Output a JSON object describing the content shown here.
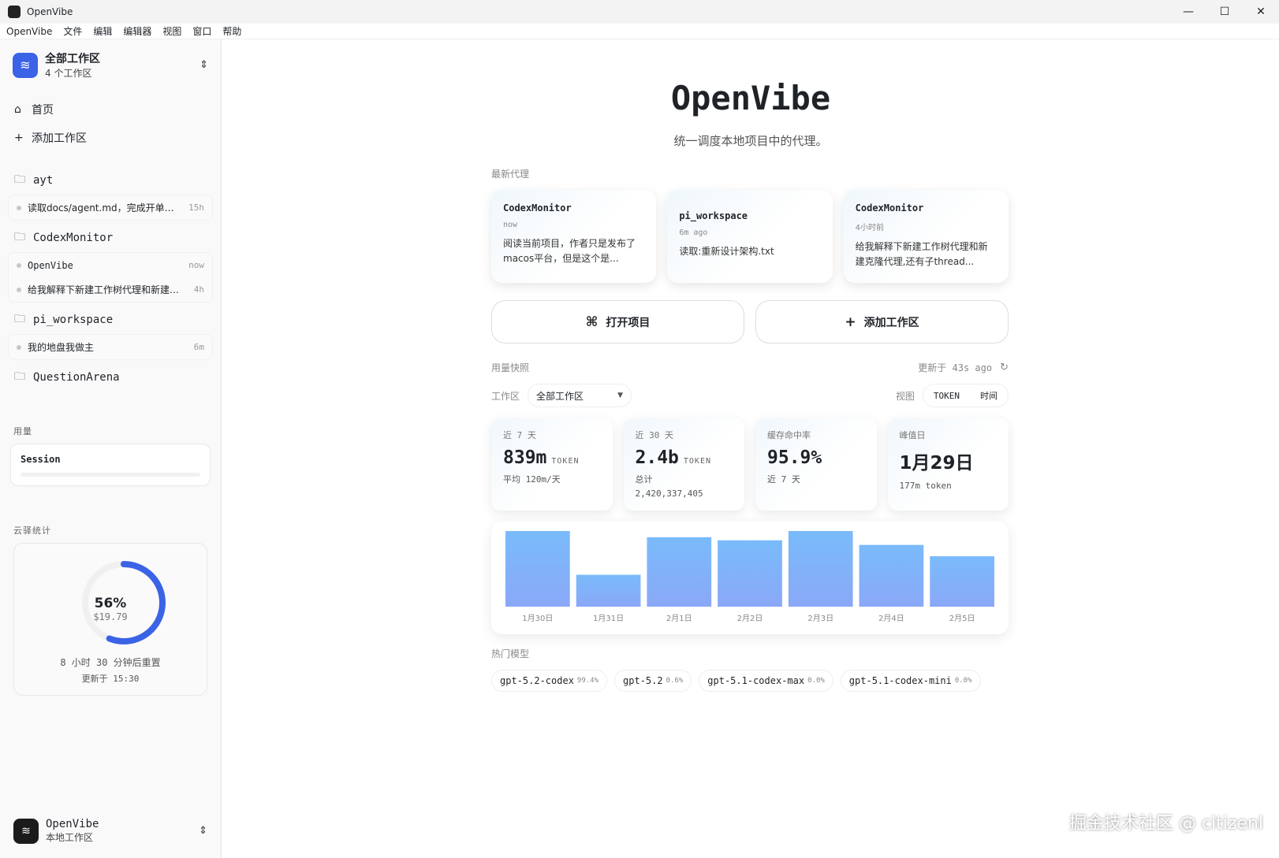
{
  "window": {
    "title": "OpenVibe",
    "minimize": "—",
    "maximize": "☐",
    "close": "✕"
  },
  "menu": [
    "OpenVibe",
    "文件",
    "编辑",
    "编辑器",
    "视图",
    "窗口",
    "帮助"
  ],
  "sidebar": {
    "workspace": {
      "title": "全部工作区",
      "subtitle": "4 个工作区"
    },
    "nav": [
      {
        "label": "首页",
        "icon": "home-icon"
      },
      {
        "label": "添加工作区",
        "icon": "plus-icon"
      }
    ],
    "folders": [
      {
        "name": "ayt",
        "items": [
          {
            "label": "读取docs/agent.md，完成开单界面设计",
            "time": "15h"
          }
        ]
      },
      {
        "name": "CodexMonitor",
        "items": [
          {
            "label": "OpenVibe",
            "time": "now"
          },
          {
            "label": "给我解释下新建工作树代理和新建克隆代理",
            "time": "4h"
          }
        ]
      },
      {
        "name": "pi_workspace",
        "items": [
          {
            "label": "我的地盘我做主",
            "time": "6m"
          }
        ]
      },
      {
        "name": "QuestionArena",
        "items": []
      }
    ],
    "usage_label": "用量",
    "session_label": "Session",
    "cloud_label": "云驿统计",
    "cloud": {
      "percent": "56%",
      "percent_value": 56,
      "amount": "$19.79",
      "reset": "8 小时 30 分钟后重置",
      "updated": "更新于 15:30",
      "ring_color": "#3b63e6"
    },
    "bottom": {
      "title": "OpenVibe",
      "subtitle": "本地工作区"
    }
  },
  "main": {
    "title": "OpenVibe",
    "subtitle": "统一调度本地项目中的代理。",
    "recent_label": "最新代理",
    "agents": [
      {
        "name": "CodexMonitor",
        "time": "now",
        "desc": "阅读当前项目，作者只是发布了macos平台，但是这个是..."
      },
      {
        "name": "pi_workspace",
        "time": "6m ago",
        "desc": "读取:重新设计架构.txt"
      },
      {
        "name": "CodexMonitor",
        "time": "4小时前",
        "desc": "给我解释下新建工作树代理和新建克隆代理,还有子thread..."
      }
    ],
    "open_project": "打开项目",
    "add_workspace": "添加工作区",
    "usage_label": "用量快照",
    "updated": "更新于 43s ago",
    "workspace_label": "工作区",
    "workspace_value": "全部工作区",
    "view_label": "视图",
    "view_options": [
      "TOKEN",
      "时间"
    ],
    "stats": [
      {
        "key": "近 7 天",
        "value": "839m",
        "unit": "TOKEN",
        "foot": "平均 120m/天"
      },
      {
        "key": "近 30 天",
        "value": "2.4b",
        "unit": "TOKEN",
        "foot": "总计 2,420,337,405"
      },
      {
        "key": "缓存命中率",
        "value": "95.9%",
        "unit": "",
        "foot": "近 7 天"
      },
      {
        "key": "峰值日",
        "value": "1月29日",
        "unit": "",
        "foot": "177m token"
      }
    ],
    "models_label": "热门模型",
    "models": [
      {
        "name": "gpt-5.2-codex",
        "pct": "99.4%"
      },
      {
        "name": "gpt-5.2",
        "pct": "0.6%"
      },
      {
        "name": "gpt-5.1-codex-max",
        "pct": "0.0%"
      },
      {
        "name": "gpt-5.1-codex-mini",
        "pct": "0.0%"
      }
    ]
  },
  "chart_data": {
    "type": "bar",
    "categories": [
      "1月30日",
      "1月31日",
      "2月1日",
      "2月2日",
      "2月3日",
      "2月4日",
      "2月5日"
    ],
    "values": [
      147,
      62,
      135,
      129,
      147,
      120,
      98
    ],
    "bar_color_top": "#79bbfb",
    "bar_color_bottom": "#8aa8f7"
  },
  "watermark": "掘金技术社区 @ citizenl"
}
